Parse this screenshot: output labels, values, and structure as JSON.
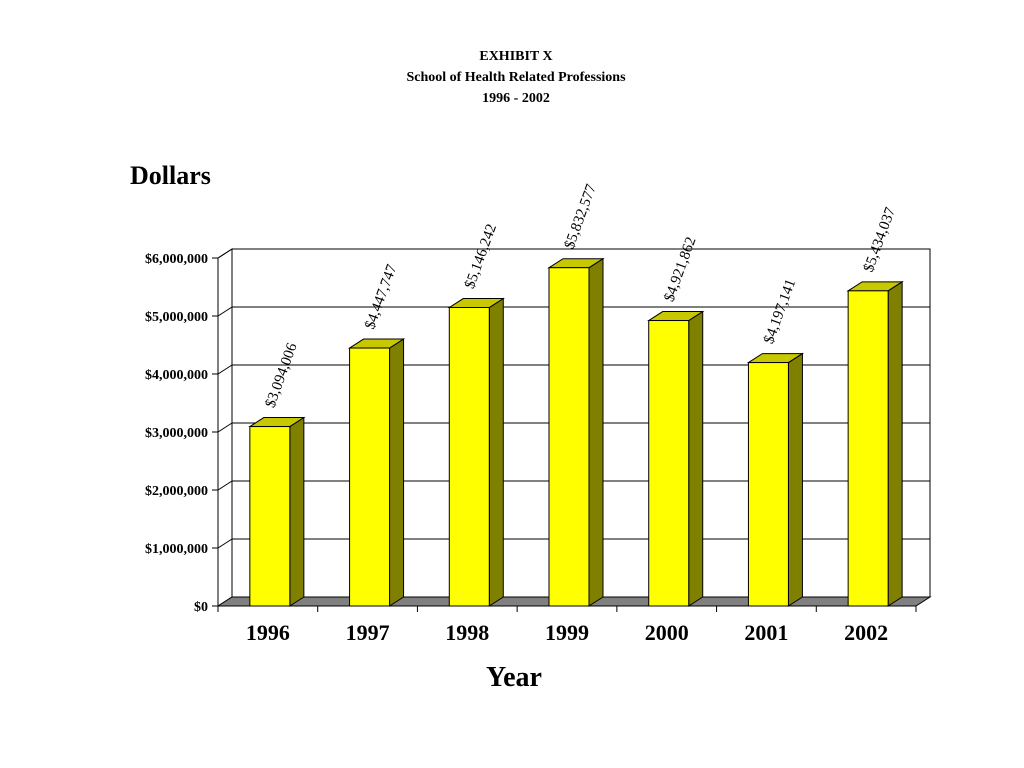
{
  "titles": {
    "line1": "EXHIBIT X",
    "line2": "School of Health Related Professions",
    "line3": "1996 - 2002"
  },
  "chart_data": {
    "type": "bar",
    "style": "3d",
    "categories": [
      "1996",
      "1997",
      "1998",
      "1999",
      "2000",
      "2001",
      "2002"
    ],
    "values": [
      3094006,
      4447747,
      5146242,
      5832577,
      4921862,
      4197141,
      5434037
    ],
    "data_labels": [
      "$3,094,006",
      "$4,447,747",
      "$5,146,242",
      "$5,832,577",
      "$4,921,862",
      "$4,197,141",
      "$5,434,037"
    ],
    "yticks": [
      0,
      1000000,
      2000000,
      3000000,
      4000000,
      5000000,
      6000000
    ],
    "ytick_labels": [
      "$0",
      "$1,000,000",
      "$2,000,000",
      "$3,000,000",
      "$4,000,000",
      "$5,000,000",
      "$6,000,000"
    ],
    "ylim": [
      0,
      6000000
    ],
    "ylabel": "Dollars",
    "xlabel": "Year",
    "grid": true,
    "legend": "none",
    "colors": {
      "bar_front": "#ffff00",
      "bar_top": "#c8c800",
      "bar_side": "#808000",
      "floor": "#808080",
      "gridline": "#000000"
    }
  }
}
